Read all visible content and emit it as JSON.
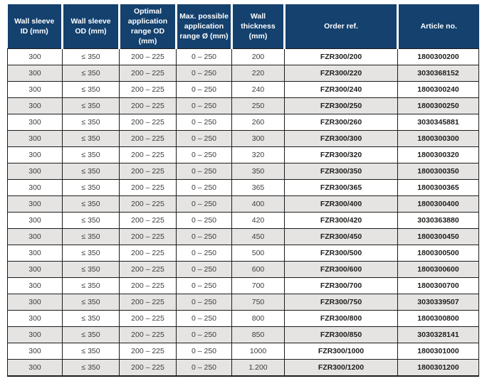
{
  "colors": {
    "header_bg": "#14416e",
    "header_text": "#ffffff",
    "row_odd_bg": "#ffffff",
    "row_even_bg": "#e5e4e2",
    "cell_border": "#1c1c1c",
    "cell_text": "#3c3c3b",
    "strong_text": "#1d1d1b"
  },
  "table": {
    "columns": [
      {
        "key": "wall_sleeve_id",
        "label": "Wall sleeve ID (mm)"
      },
      {
        "key": "wall_sleeve_od",
        "label": "Wall sleeve OD (mm)"
      },
      {
        "key": "optimal_application_range_od",
        "label": "Optimal application range OD (mm)"
      },
      {
        "key": "max_possible_application_range",
        "label": "Max. possible application range Ø (mm)"
      },
      {
        "key": "wall_thickness",
        "label": "Wall thickness (mm)"
      },
      {
        "key": "order_ref",
        "label": "Order ref."
      },
      {
        "key": "article_no",
        "label": "Article no."
      }
    ],
    "rows": [
      [
        "300",
        "≤ 350",
        "200 – 225",
        "0 – 250",
        "200",
        "FZR300/200",
        "1800300200"
      ],
      [
        "300",
        "≤ 350",
        "200 – 225",
        "0 – 250",
        "220",
        "FZR300/220",
        "3030368152"
      ],
      [
        "300",
        "≤ 350",
        "200 – 225",
        "0 – 250",
        "240",
        "FZR300/240",
        "1800300240"
      ],
      [
        "300",
        "≤ 350",
        "200 – 225",
        "0 – 250",
        "250",
        "FZR300/250",
        "1800300250"
      ],
      [
        "300",
        "≤ 350",
        "200 – 225",
        "0 – 250",
        "260",
        "FZR300/260",
        "3030345881"
      ],
      [
        "300",
        "≤ 350",
        "200 – 225",
        "0 – 250",
        "300",
        "FZR300/300",
        "1800300300"
      ],
      [
        "300",
        "≤ 350",
        "200 – 225",
        "0 – 250",
        "320",
        "FZR300/320",
        "1800300320"
      ],
      [
        "300",
        "≤ 350",
        "200 – 225",
        "0 – 250",
        "350",
        "FZR300/350",
        "1800300350"
      ],
      [
        "300",
        "≤ 350",
        "200 – 225",
        "0 – 250",
        "365",
        "FZR300/365",
        "1800300365"
      ],
      [
        "300",
        "≤ 350",
        "200 – 225",
        "0 – 250",
        "400",
        "FZR300/400",
        "1800300400"
      ],
      [
        "300",
        "≤ 350",
        "200 – 225",
        "0 – 250",
        "420",
        "FZR300/420",
        "3030363880"
      ],
      [
        "300",
        "≤ 350",
        "200 – 225",
        "0 – 250",
        "450",
        "FZR300/450",
        "1800300450"
      ],
      [
        "300",
        "≤ 350",
        "200 – 225",
        "0 – 250",
        "500",
        "FZR300/500",
        "1800300500"
      ],
      [
        "300",
        "≤ 350",
        "200 – 225",
        "0 – 250",
        "600",
        "FZR300/600",
        "1800300600"
      ],
      [
        "300",
        "≤ 350",
        "200 – 225",
        "0 – 250",
        "700",
        "FZR300/700",
        "1800300700"
      ],
      [
        "300",
        "≤ 350",
        "200 – 225",
        "0 – 250",
        "750",
        "FZR300/750",
        "3030339507"
      ],
      [
        "300",
        "≤ 350",
        "200 – 225",
        "0 – 250",
        "800",
        "FZR300/800",
        "1800300800"
      ],
      [
        "300",
        "≤ 350",
        "200 – 225",
        "0 – 250",
        "850",
        "FZR300/850",
        "3030328141"
      ],
      [
        "300",
        "≤ 350",
        "200 – 225",
        "0 – 250",
        "1000",
        "FZR300/1000",
        "1800301000"
      ],
      [
        "300",
        "≤ 350",
        "200 – 225",
        "0 – 250",
        "1.200",
        "FZR300/1200",
        "1800301200"
      ]
    ]
  }
}
